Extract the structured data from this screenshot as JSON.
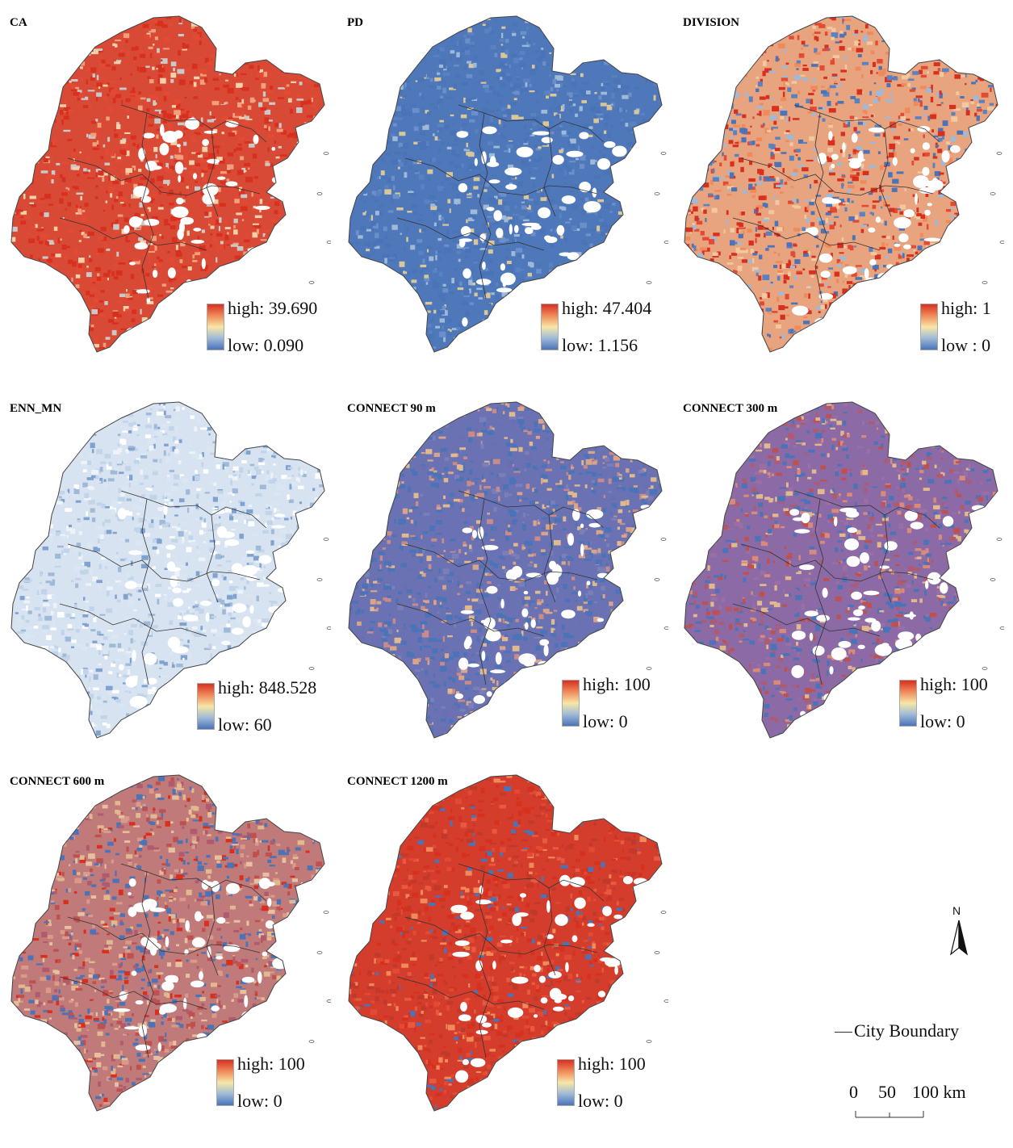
{
  "panels": [
    {
      "title": "CA",
      "high": "high: 39.690",
      "low": "low: 0.090",
      "palette": [
        "#d7301f",
        "#e34a33",
        "#d7301f",
        "#f2a07b",
        "#d7301f",
        "#c9c9c9",
        "#e34a33",
        "#f6d0a8"
      ],
      "base": "#d84a36"
    },
    {
      "title": "PD",
      "high": "high: 47.404",
      "low": "low: 1.156",
      "palette": [
        "#4a73b8",
        "#5a82c0",
        "#4a73b8",
        "#9ebad8",
        "#4a73b8",
        "#d9c79a",
        "#4a73b8",
        "#6b8fc8"
      ],
      "base": "#4f78bb"
    },
    {
      "title": "DIVISION",
      "high": "high: 1",
      "low": "low : 0",
      "palette": [
        "#d7301f",
        "#4a73b8",
        "#f2c8a0",
        "#e34a33",
        "#9ebad8",
        "#f08a5a",
        "#5a82c0",
        "#d7301f"
      ],
      "base": "#e8a37f"
    },
    {
      "title": "ENN_MN",
      "high": "high: 848.528",
      "low": "low: 60",
      "palette": [
        "#dbe6f3",
        "#c2d4ea",
        "#9ebad8",
        "#eef3f9",
        "#7fa2cf",
        "#dbe6f3",
        "#ffffff",
        "#c2d4ea"
      ],
      "base": "#d7e3f1"
    },
    {
      "title": "CONNECT 90 m",
      "high": "high: 100",
      "low": "low: 0",
      "palette": [
        "#4a73b8",
        "#7a7fb8",
        "#c98a8a",
        "#4a73b8",
        "#d9a58a",
        "#6b6fb0",
        "#4a73b8",
        "#e0b98f"
      ],
      "base": "#6a72b3"
    },
    {
      "title": "CONNECT 300 m",
      "high": "high: 100",
      "low": "low: 0",
      "palette": [
        "#8a6aa8",
        "#c0504d",
        "#4a73b8",
        "#9a6fa5",
        "#d98a7a",
        "#4a73b8",
        "#b05a70",
        "#e0b98f"
      ],
      "base": "#8b6aa6"
    },
    {
      "title": "CONNECT 600 m",
      "high": "high: 100",
      "low": "low: 0",
      "palette": [
        "#c0504d",
        "#d99a8a",
        "#4a73b8",
        "#e0b98f",
        "#b05a70",
        "#d7301f",
        "#4a73b8",
        "#e8c0a0"
      ],
      "base": "#c07a7a"
    },
    {
      "title": "CONNECT 1200 m",
      "high": "high: 100",
      "low": "low: 0",
      "palette": [
        "#d7301f",
        "#c0392b",
        "#e34a33",
        "#4a73b8",
        "#d7301f",
        "#e85a40",
        "#c0392b",
        "#f08a5a"
      ],
      "base": "#d43d2c"
    }
  ],
  "north": {
    "label": "N"
  },
  "boundary_legend": {
    "label": "City Boundary"
  },
  "scalebar": {
    "zero": "0",
    "mid": "50",
    "end": "100 km"
  }
}
